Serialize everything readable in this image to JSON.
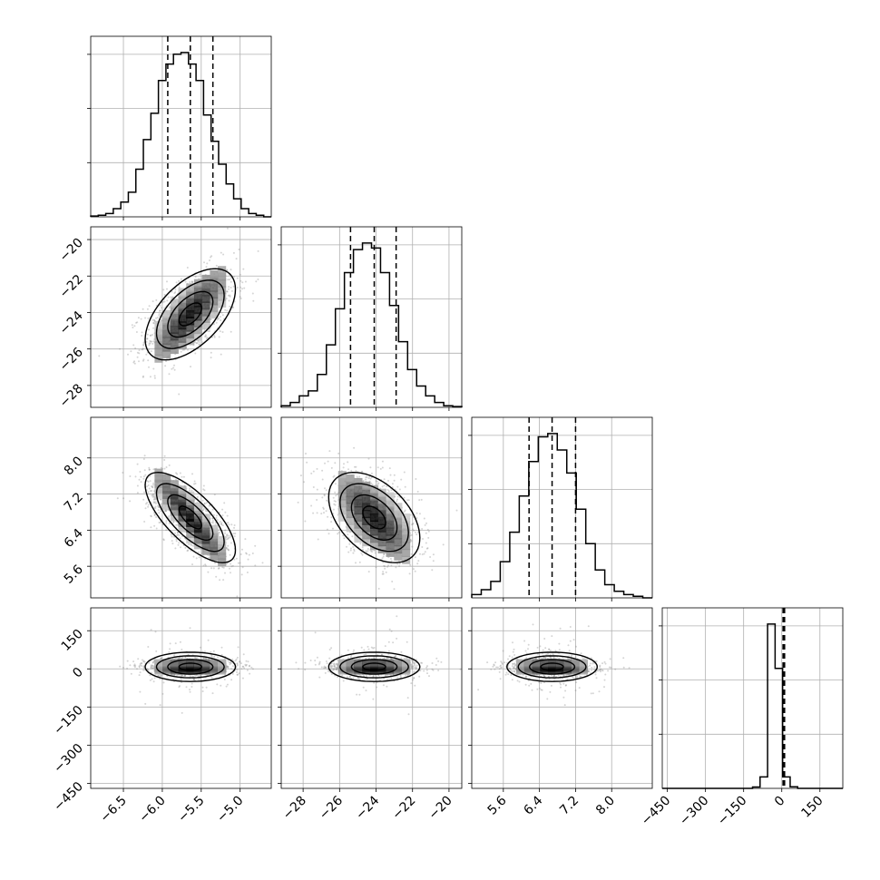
{
  "chart_data": {
    "type": "corner",
    "parameters": [
      "p0",
      "p1",
      "p2",
      "p3"
    ],
    "axes": {
      "p0": {
        "range": [
          -6.92,
          -4.6
        ],
        "ticks": [
          -6.5,
          -6.0,
          -5.5,
          -5.0
        ],
        "tick_labels": [
          "−6.5",
          "−6.0",
          "−5.5",
          "−5.0"
        ]
      },
      "p1": {
        "range": [
          -29.2,
          -19.3
        ],
        "ticks": [
          -28,
          -26,
          -24,
          -22,
          -20
        ],
        "tick_labels": [
          "−28",
          "−26",
          "−24",
          "−22",
          "−20"
        ]
      },
      "p2": {
        "range": [
          4.9,
          8.9
        ],
        "ticks": [
          5.6,
          6.4,
          7.2,
          8.0
        ],
        "tick_labels": [
          "5.6",
          "6.4",
          "7.2",
          "8.0"
        ]
      },
      "p3": {
        "range": [
          -470,
          240
        ],
        "ticks": [
          -450,
          -300,
          -150,
          0,
          150
        ],
        "tick_labels": [
          "−450",
          "−300",
          "−150",
          "0",
          "150"
        ]
      }
    },
    "marginals": [
      {
        "param": "p0",
        "bin_edges": [
          -6.92,
          -4.6
        ],
        "counts": [
          0.005,
          0.01,
          0.02,
          0.05,
          0.09,
          0.15,
          0.29,
          0.47,
          0.63,
          0.83,
          0.93,
          0.99,
          1.0,
          0.93,
          0.83,
          0.62,
          0.46,
          0.32,
          0.2,
          0.11,
          0.05,
          0.02,
          0.01,
          0.0
        ],
        "quantiles": [
          -5.93,
          -5.64,
          -5.35
        ]
      },
      {
        "param": "p1",
        "bin_edges": [
          -29.2,
          -19.3
        ],
        "counts": [
          0.01,
          0.03,
          0.07,
          0.1,
          0.2,
          0.38,
          0.6,
          0.82,
          0.96,
          1.0,
          0.97,
          0.82,
          0.62,
          0.4,
          0.23,
          0.13,
          0.07,
          0.03,
          0.01,
          0.005
        ],
        "quantiles": [
          -25.4,
          -24.1,
          -22.9
        ]
      },
      {
        "param": "p2",
        "bin_edges": [
          4.9,
          8.9
        ],
        "counts": [
          0.02,
          0.05,
          0.1,
          0.22,
          0.4,
          0.62,
          0.83,
          0.98,
          1.0,
          0.9,
          0.76,
          0.54,
          0.33,
          0.17,
          0.08,
          0.04,
          0.02,
          0.01,
          0.0
        ],
        "quantiles": [
          6.17,
          6.68,
          7.2
        ]
      },
      {
        "param": "p3",
        "bin_edges": [
          -470,
          240
        ],
        "counts": [
          0,
          0,
          0,
          0,
          0,
          0,
          0,
          0,
          0,
          0,
          0,
          0,
          0.008,
          0.07,
          1.0,
          0.73,
          0.07,
          0.01,
          0,
          0,
          0,
          0,
          0,
          0
        ],
        "quantiles": [
          5,
          8,
          11
        ]
      }
    ],
    "pairs": [
      {
        "x": "p0",
        "y": "p1",
        "center": [
          -5.64,
          -24.1
        ],
        "sigma": [
          0.29,
          1.25
        ],
        "corr": 0.55
      },
      {
        "x": "p0",
        "y": "p2",
        "center": [
          -5.64,
          6.68
        ],
        "sigma": [
          0.29,
          0.5
        ],
        "corr": -0.72
      },
      {
        "x": "p1",
        "y": "p2",
        "center": [
          -24.1,
          6.68
        ],
        "sigma": [
          1.25,
          0.5
        ],
        "corr": -0.45
      },
      {
        "x": "p0",
        "y": "p3",
        "center": [
          -5.64,
          8
        ],
        "sigma": [
          0.29,
          18
        ],
        "corr": 0.0
      },
      {
        "x": "p1",
        "y": "p3",
        "center": [
          -24.1,
          8
        ],
        "sigma": [
          1.25,
          18
        ],
        "corr": 0.0
      },
      {
        "x": "p2",
        "y": "p3",
        "center": [
          6.68,
          8
        ],
        "sigma": [
          0.5,
          18
        ],
        "corr": 0.0
      }
    ],
    "contour_levels": [
      0.5,
      1.0,
      1.5,
      2.0
    ],
    "grid": true,
    "colors": {
      "line": "#000000",
      "grid": "#b0b0b0",
      "scatter": "#888888"
    }
  }
}
